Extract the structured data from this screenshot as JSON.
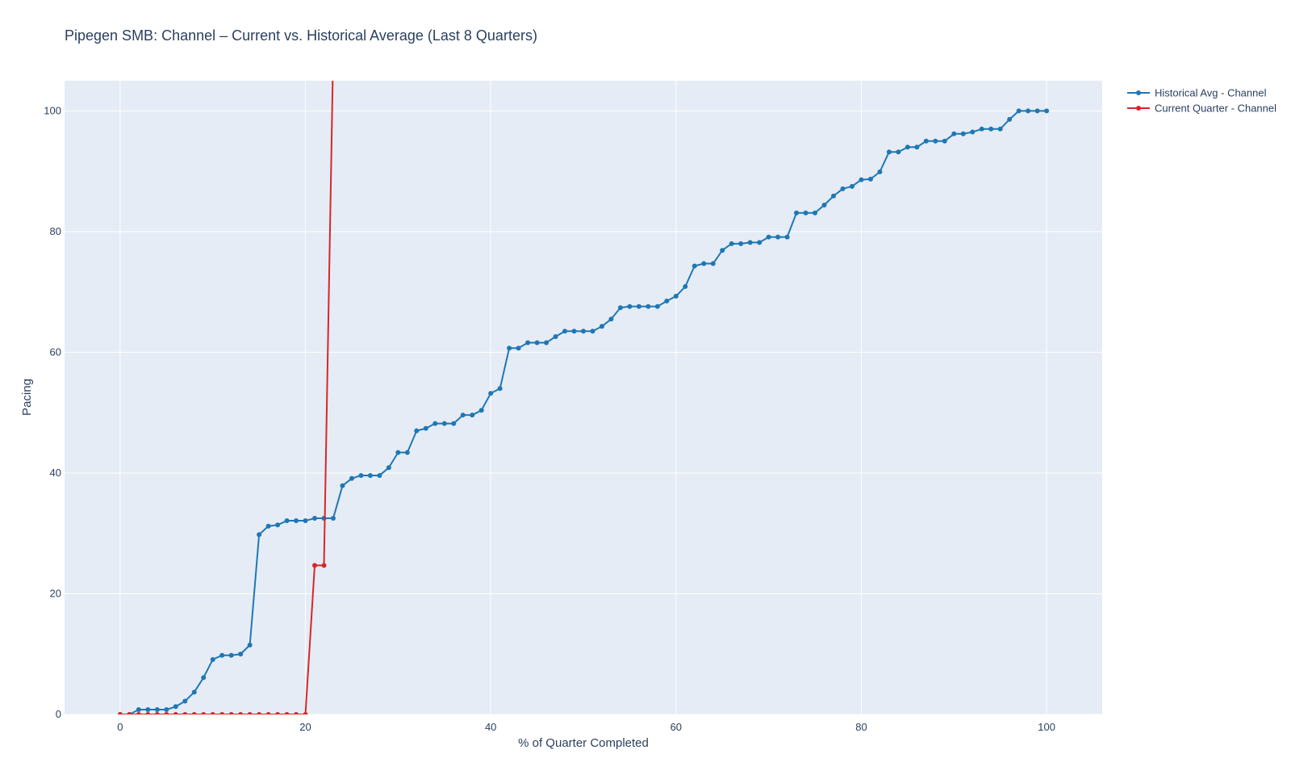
{
  "chart_data": {
    "type": "line",
    "title": "Pipegen SMB: Channel – Current vs. Historical Average (Last 8 Quarters)",
    "xlabel": "% of Quarter Completed",
    "ylabel": "Pacing",
    "xlim": [
      -6,
      106
    ],
    "ylim": [
      0,
      105
    ],
    "xticks": [
      0,
      20,
      40,
      60,
      80,
      100
    ],
    "yticks": [
      0,
      20,
      40,
      60,
      80,
      100
    ],
    "grid": true,
    "legend_position": "top-right, outside plot",
    "plot_background": "#e5ecf6",
    "series": [
      {
        "name": "Historical Avg - Channel",
        "color": "#1f77b4",
        "x": [
          0,
          1,
          2,
          3,
          4,
          5,
          6,
          7,
          8,
          9,
          10,
          11,
          12,
          13,
          14,
          15,
          16,
          17,
          18,
          19,
          20,
          21,
          22,
          23,
          24,
          25,
          26,
          27,
          28,
          29,
          30,
          31,
          32,
          33,
          34,
          35,
          36,
          37,
          38,
          39,
          40,
          41,
          42,
          43,
          44,
          45,
          46,
          47,
          48,
          49,
          50,
          51,
          52,
          53,
          54,
          55,
          56,
          57,
          58,
          59,
          60,
          61,
          62,
          63,
          64,
          65,
          66,
          67,
          68,
          69,
          70,
          71,
          72,
          73,
          74,
          75,
          76,
          77,
          78,
          79,
          80,
          81,
          82,
          83,
          84,
          85,
          86,
          87,
          88,
          89,
          90,
          91,
          92,
          93,
          94,
          95,
          96,
          97,
          98,
          99,
          100
        ],
        "y": [
          0,
          0,
          0.8,
          0.8,
          0.8,
          0.8,
          1.3,
          2.2,
          3.7,
          6.1,
          9.1,
          9.8,
          9.8,
          10.0,
          11.5,
          29.8,
          31.2,
          31.4,
          32.1,
          32.1,
          32.1,
          32.5,
          32.5,
          32.5,
          37.9,
          39.1,
          39.6,
          39.6,
          39.6,
          40.9,
          43.4,
          43.4,
          47.0,
          47.4,
          48.2,
          48.2,
          48.2,
          49.6,
          49.6,
          50.4,
          53.2,
          54.0,
          60.7,
          60.7,
          61.6,
          61.6,
          61.6,
          62.6,
          63.5,
          63.5,
          63.5,
          63.5,
          64.3,
          65.5,
          67.4,
          67.6,
          67.6,
          67.6,
          67.6,
          68.5,
          69.3,
          70.9,
          74.3,
          74.7,
          74.7,
          76.9,
          78.0,
          78.0,
          78.2,
          78.2,
          79.1,
          79.1,
          79.1,
          83.1,
          83.1,
          83.1,
          84.4,
          85.9,
          87.1,
          87.5,
          88.6,
          88.7,
          89.9,
          93.2,
          93.2,
          94.0,
          94.0,
          95.0,
          95.0,
          95.0,
          96.2,
          96.2,
          96.5,
          97.0,
          97.0,
          97.0,
          98.6,
          100,
          100,
          100,
          100
        ]
      },
      {
        "name": "Current Quarter - Channel",
        "color": "#d62728",
        "x": [
          0,
          1,
          2,
          3,
          4,
          5,
          6,
          7,
          8,
          9,
          10,
          11,
          12,
          13,
          14,
          15,
          16,
          17,
          18,
          19,
          20,
          21,
          22,
          23
        ],
        "y": [
          0,
          0,
          0,
          0,
          0,
          0,
          0,
          0,
          0,
          0,
          0,
          0,
          0,
          0,
          0,
          0,
          0,
          0,
          0,
          0,
          0,
          24.7,
          24.7,
          110
        ]
      }
    ]
  }
}
